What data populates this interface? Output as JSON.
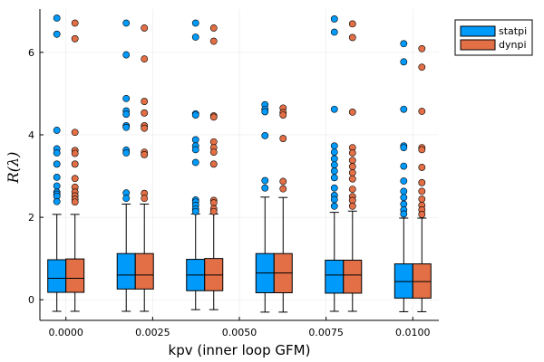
{
  "chart_data": {
    "type": "box",
    "xlabel": "kpv (inner loop GFM)",
    "ylabel": "R(λ)",
    "xlim": [
      -0.00075,
      0.01075
    ],
    "ylim": [
      -0.5,
      7.05
    ],
    "x_ticks": [
      0.0,
      0.0025,
      0.005,
      0.0075,
      0.01
    ],
    "x_tick_labels": [
      "0.0000",
      "0.0025",
      "0.0050",
      "0.0075",
      "0.0100"
    ],
    "y_ticks": [
      0,
      2,
      4,
      6
    ],
    "y_tick_labels": [
      "0",
      "2",
      "4",
      "6"
    ],
    "grid": true,
    "legend": {
      "placement": "top-right",
      "entries": [
        "statpi",
        "dynpi"
      ]
    },
    "colors": {
      "statpi": "#009AFA",
      "dynpi": "#E26F46"
    },
    "categories": [
      0.0,
      0.002,
      0.004,
      0.006,
      0.008,
      0.01
    ],
    "series": [
      {
        "name": "statpi",
        "boxes": [
          {
            "whisker_low": -0.28,
            "q1": 0.18,
            "median": 0.52,
            "q3": 0.97,
            "whisker_high": 2.07,
            "outliers": [
              6.83,
              6.44,
              4.11,
              3.66,
              3.56,
              3.29,
              2.97,
              2.76,
              2.61,
              2.56,
              2.51,
              2.38
            ]
          },
          {
            "whisker_low": -0.28,
            "q1": 0.26,
            "median": 0.6,
            "q3": 1.12,
            "whisker_high": 2.32,
            "outliers": [
              6.71,
              5.94,
              4.88,
              4.58,
              4.5,
              4.22,
              4.18,
              3.63,
              3.56,
              2.59,
              2.46
            ]
          },
          {
            "whisker_low": -0.24,
            "q1": 0.22,
            "median": 0.6,
            "q3": 0.98,
            "whisker_high": 2.08,
            "outliers": [
              6.71,
              6.37,
              4.51,
              4.48,
              3.88,
              3.73,
              3.64,
              3.33,
              2.42,
              2.37,
              2.29,
              2.2,
              2.14
            ]
          },
          {
            "whisker_low": -0.3,
            "q1": 0.17,
            "median": 0.65,
            "q3": 1.12,
            "whisker_high": 2.49,
            "outliers": [
              4.73,
              4.62,
              4.56,
              3.98,
              2.89,
              2.71
            ]
          },
          {
            "whisker_low": -0.28,
            "q1": 0.16,
            "median": 0.6,
            "q3": 0.96,
            "whisker_high": 2.12,
            "outliers": [
              6.81,
              6.49,
              4.62,
              3.73,
              3.58,
              3.42,
              3.27,
              3.12,
              2.96,
              2.71,
              2.53,
              2.43,
              2.27
            ]
          },
          {
            "whisker_low": -0.29,
            "q1": 0.04,
            "median": 0.44,
            "q3": 0.87,
            "whisker_high": 1.98,
            "outliers": [
              6.21,
              5.77,
              4.62,
              3.73,
              3.69,
              3.24,
              2.88,
              2.63,
              2.48,
              2.32,
              2.18,
              2.08
            ]
          }
        ]
      },
      {
        "name": "dynpi",
        "boxes": [
          {
            "whisker_low": -0.28,
            "q1": 0.18,
            "median": 0.52,
            "q3": 0.99,
            "whisker_high": 2.07,
            "outliers": [
              6.71,
              6.33,
              4.06,
              3.62,
              3.55,
              3.29,
              2.94,
              2.73,
              2.61,
              2.52,
              2.44,
              2.37
            ]
          },
          {
            "whisker_low": -0.28,
            "q1": 0.26,
            "median": 0.6,
            "q3": 1.12,
            "whisker_high": 2.32,
            "outliers": [
              6.59,
              5.84,
              4.81,
              4.53,
              4.22,
              4.16,
              3.58,
              3.52,
              2.58,
              2.46
            ]
          },
          {
            "whisker_low": -0.24,
            "q1": 0.22,
            "median": 0.6,
            "q3": 1.0,
            "whisker_high": 2.08,
            "outliers": [
              6.59,
              6.27,
              4.46,
              4.43,
              3.83,
              3.69,
              3.58,
              3.29,
              2.41,
              2.35,
              2.21,
              2.14
            ]
          },
          {
            "whisker_low": -0.3,
            "q1": 0.17,
            "median": 0.65,
            "q3": 1.12,
            "whisker_high": 2.48,
            "outliers": [
              4.65,
              4.54,
              4.48,
              3.91,
              2.87,
              2.69
            ]
          },
          {
            "whisker_low": -0.28,
            "q1": 0.16,
            "median": 0.6,
            "q3": 0.96,
            "whisker_high": 2.15,
            "outliers": [
              6.69,
              6.36,
              4.55,
              3.69,
              3.56,
              3.38,
              3.23,
              3.08,
              2.93,
              2.68,
              2.5,
              2.41,
              2.27
            ]
          },
          {
            "whisker_low": -0.29,
            "q1": 0.04,
            "median": 0.44,
            "q3": 0.87,
            "whisker_high": 1.98,
            "outliers": [
              6.09,
              5.64,
              4.57,
              3.69,
              3.64,
              3.21,
              2.84,
              2.63,
              2.44,
              2.29,
              2.18,
              2.07
            ]
          }
        ]
      }
    ]
  }
}
